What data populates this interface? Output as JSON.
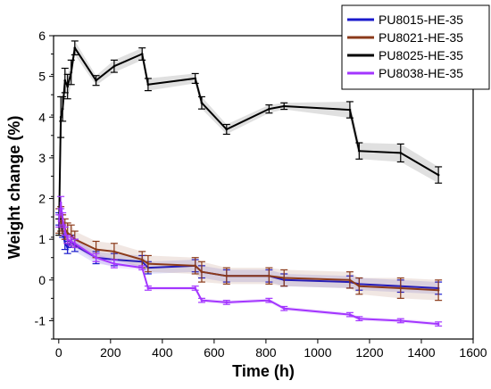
{
  "chart_data": {
    "type": "line",
    "title": "",
    "xlabel": "Time (h)",
    "ylabel": "Weight change (%)",
    "xlim": [
      -20,
      1600
    ],
    "ylim": [
      -1.45,
      6
    ],
    "xticks": [
      0,
      200,
      400,
      600,
      800,
      1000,
      1200,
      1400,
      1600
    ],
    "yticks": [
      -1,
      0,
      1,
      2,
      3,
      4,
      5,
      6
    ],
    "grid": false,
    "legend_position": "top-right",
    "series": [
      {
        "name": "PU8015-HE-35",
        "color": "#1a1acc",
        "x": [
          1,
          8,
          15,
          24,
          34,
          48,
          62,
          144,
          214,
          322,
          345,
          527,
          552,
          648,
          812,
          870,
          1124,
          1160,
          1320,
          1466
        ],
        "y": [
          1.5,
          1.45,
          1.2,
          0.9,
          0.8,
          0.95,
          0.85,
          0.55,
          0.5,
          0.45,
          0.3,
          0.35,
          0.2,
          0.1,
          0.1,
          0.0,
          -0.05,
          -0.1,
          -0.15,
          -0.2
        ],
        "err": [
          0.15,
          0.15,
          0.15,
          0.15,
          0.15,
          0.15,
          0.15,
          0.15,
          0.15,
          0.15,
          0.15,
          0.15,
          0.15,
          0.15,
          0.15,
          0.15,
          0.15,
          0.15,
          0.15,
          0.15
        ]
      },
      {
        "name": "PU8021-HE-35",
        "color": "#8b3a1a",
        "x": [
          1,
          8,
          15,
          24,
          34,
          48,
          62,
          144,
          214,
          322,
          345,
          527,
          552,
          648,
          812,
          870,
          1124,
          1160,
          1320,
          1466
        ],
        "y": [
          1.45,
          1.5,
          1.35,
          1.25,
          1.15,
          1.1,
          1.0,
          0.75,
          0.7,
          0.5,
          0.4,
          0.35,
          0.2,
          0.1,
          0.1,
          0.05,
          0.0,
          -0.15,
          -0.2,
          -0.25
        ],
        "err": [
          0.3,
          0.3,
          0.25,
          0.25,
          0.25,
          0.25,
          0.2,
          0.2,
          0.2,
          0.2,
          0.2,
          0.2,
          0.25,
          0.2,
          0.2,
          0.2,
          0.2,
          0.2,
          0.25,
          0.25
        ]
      },
      {
        "name": "PU8025-HE-35",
        "color": "#000000",
        "x": [
          1,
          8,
          15,
          24,
          34,
          48,
          62,
          144,
          214,
          322,
          345,
          527,
          552,
          648,
          812,
          870,
          1124,
          1160,
          1320,
          1466
        ],
        "y": [
          1.3,
          4.0,
          4.2,
          4.9,
          4.75,
          5.1,
          5.7,
          4.9,
          5.25,
          5.55,
          4.8,
          4.95,
          4.35,
          3.7,
          4.2,
          4.27,
          4.18,
          3.17,
          3.12,
          2.58
        ],
        "err": [
          0.2,
          0.5,
          0.3,
          0.3,
          0.3,
          0.3,
          0.17,
          0.12,
          0.15,
          0.15,
          0.15,
          0.12,
          0.15,
          0.12,
          0.1,
          0.08,
          0.2,
          0.2,
          0.22,
          0.2
        ]
      },
      {
        "name": "PU8038-HE-35",
        "color": "#a335ff",
        "x": [
          1,
          8,
          15,
          24,
          34,
          48,
          62,
          144,
          214,
          322,
          345,
          527,
          552,
          648,
          812,
          870,
          1124,
          1160,
          1320,
          1466
        ],
        "y": [
          1.45,
          1.9,
          1.5,
          1.2,
          1.0,
          0.95,
          0.9,
          0.55,
          0.4,
          0.3,
          -0.2,
          -0.2,
          -0.5,
          -0.55,
          -0.5,
          -0.7,
          -0.85,
          -0.95,
          -1.0,
          -1.08
        ],
        "err": [
          0.15,
          0.15,
          0.15,
          0.1,
          0.1,
          0.1,
          0.1,
          0.1,
          0.1,
          0.05,
          0.05,
          0.05,
          0.05,
          0.05,
          0.05,
          0.05,
          0.05,
          0.05,
          0.05,
          0.05
        ]
      }
    ]
  }
}
